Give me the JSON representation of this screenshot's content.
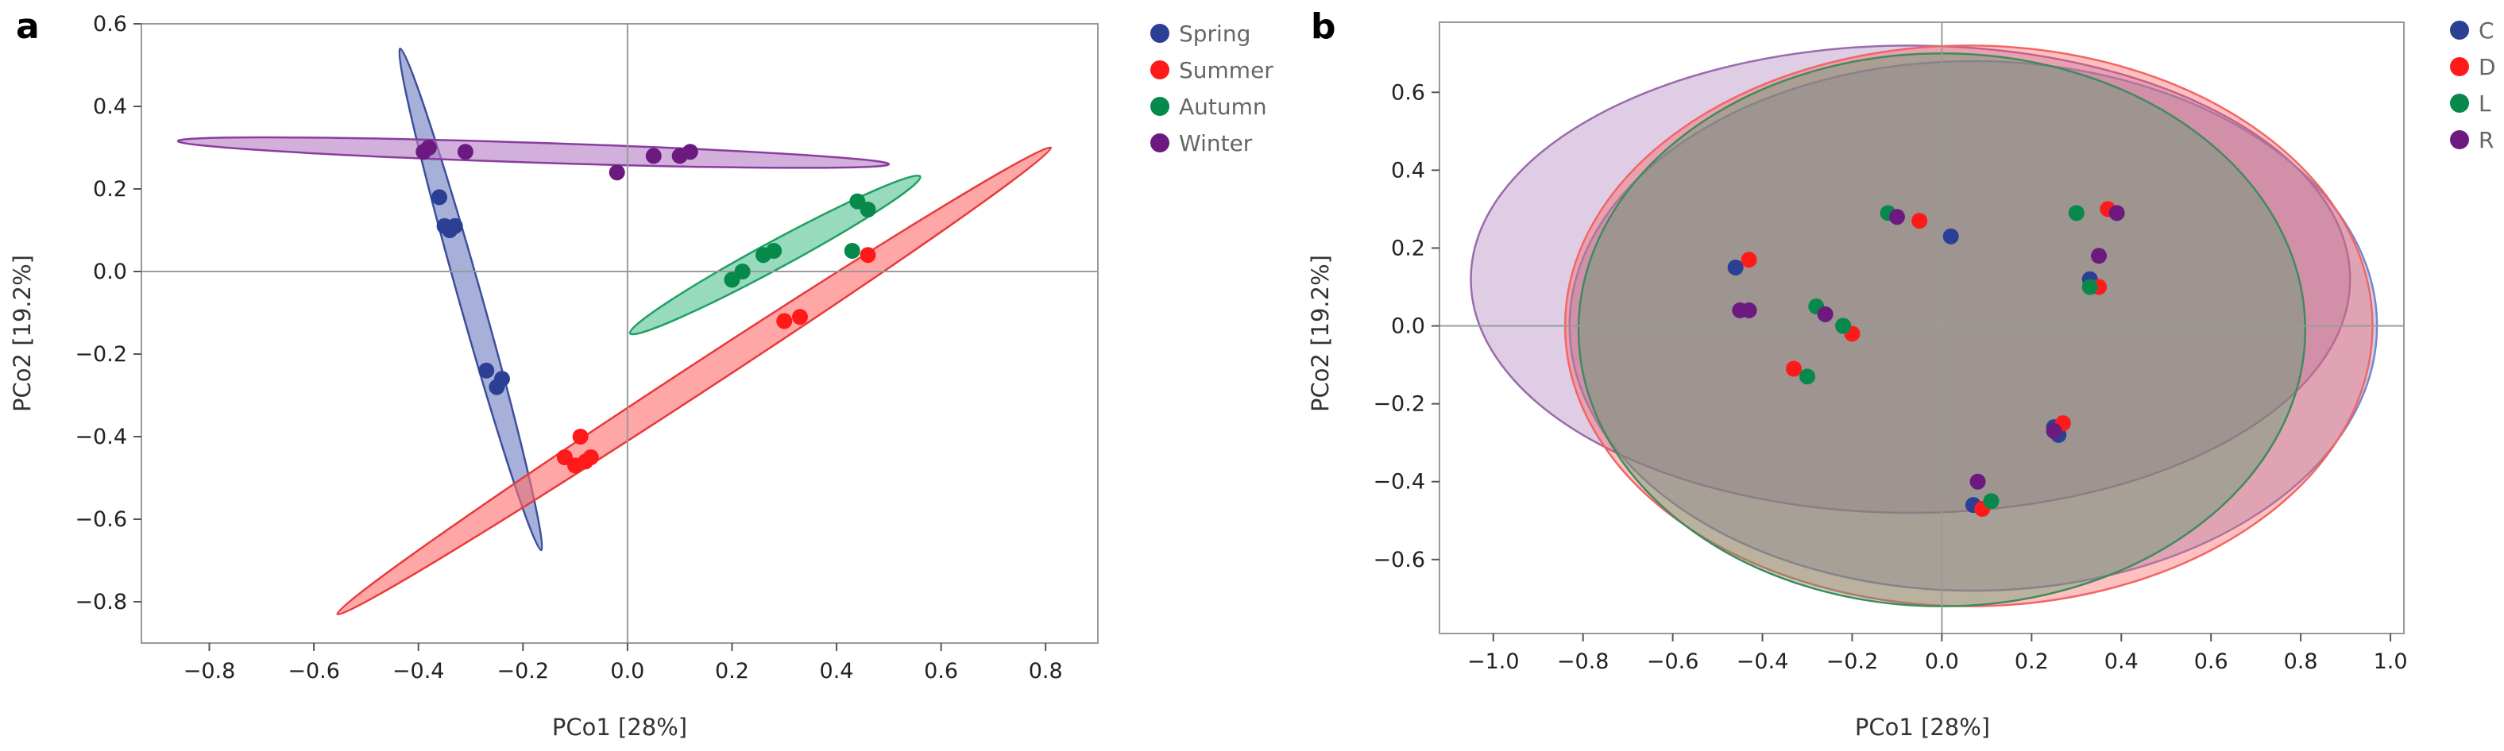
{
  "chart_data": [
    {
      "type": "scatter",
      "panel": "a",
      "xlabel": "PCo1 [28%]",
      "ylabel": "PCo2 [19.2%]",
      "xlim": [
        -0.93,
        0.9
      ],
      "ylim": [
        -0.9,
        0.6
      ],
      "xticks": [
        -0.8,
        -0.6,
        -0.4,
        -0.2,
        0.0,
        0.2,
        0.4,
        0.6,
        0.8
      ],
      "yticks": [
        0.6,
        0.4,
        0.2,
        0.0,
        -0.2,
        -0.4,
        -0.6,
        -0.8
      ],
      "xtick_labels": [
        "−0.8",
        "−0.6",
        "−0.4",
        "−0.2",
        "0.0",
        "0.2",
        "0.4",
        "0.6",
        "0.8"
      ],
      "ytick_labels": [
        "0.6",
        "0.4",
        "0.2",
        "0.0",
        "−0.2",
        "−0.4",
        "−0.6",
        "−0.8"
      ],
      "legend": [
        {
          "label": "Spring",
          "color": "#2b3f95"
        },
        {
          "label": "Summer",
          "color": "#ff1a1a"
        },
        {
          "label": "Autumn",
          "color": "#06894a"
        },
        {
          "label": "Winter",
          "color": "#6c1a80"
        }
      ],
      "series": [
        {
          "name": "Spring",
          "color": "#2b3f95",
          "fill": "#6f7fc0",
          "stroke": "#3d4f9d",
          "points": [
            [
              -0.36,
              0.18
            ],
            [
              -0.35,
              0.11
            ],
            [
              -0.34,
              0.1
            ],
            [
              -0.33,
              0.11
            ],
            [
              -0.27,
              -0.24
            ],
            [
              -0.25,
              -0.28
            ],
            [
              -0.24,
              -0.26
            ]
          ],
          "ellipse_segment": [
            [
              -0.435,
              0.54
            ],
            [
              -0.165,
              -0.675
            ]
          ],
          "ellipse_half_width": 0.022
        },
        {
          "name": "Summer",
          "color": "#ff1a1a",
          "fill": "#ff6f6f",
          "stroke": "#e83a3a",
          "points": [
            [
              -0.12,
              -0.45
            ],
            [
              -0.1,
              -0.47
            ],
            [
              -0.09,
              -0.4
            ],
            [
              -0.08,
              -0.46
            ],
            [
              -0.07,
              -0.45
            ],
            [
              0.3,
              -0.12
            ],
            [
              0.33,
              -0.11
            ],
            [
              0.46,
              0.04
            ]
          ],
          "ellipse_segment": [
            [
              -0.555,
              -0.83
            ],
            [
              0.81,
              0.3
            ]
          ],
          "ellipse_half_width": 0.027
        },
        {
          "name": "Autumn",
          "color": "#06894a",
          "fill": "#58c494",
          "stroke": "#20a063",
          "points": [
            [
              0.2,
              -0.02
            ],
            [
              0.22,
              0.0
            ],
            [
              0.26,
              0.04
            ],
            [
              0.28,
              0.05
            ],
            [
              0.43,
              0.05
            ],
            [
              0.44,
              0.17
            ],
            [
              0.46,
              0.15
            ]
          ],
          "ellipse_segment": [
            [
              0.005,
              -0.15
            ],
            [
              0.56,
              0.23
            ]
          ],
          "ellipse_half_width": 0.026
        },
        {
          "name": "Winter",
          "color": "#6c1a80",
          "fill": "#b87fc7",
          "stroke": "#8a3da0",
          "points": [
            [
              -0.39,
              0.29
            ],
            [
              -0.38,
              0.3
            ],
            [
              -0.31,
              0.29
            ],
            [
              -0.02,
              0.24
            ],
            [
              0.05,
              0.28
            ],
            [
              0.1,
              0.28
            ],
            [
              0.12,
              0.29
            ]
          ],
          "ellipse_segment": [
            [
              -0.86,
              0.316
            ],
            [
              0.5,
              0.26
            ]
          ],
          "ellipse_half_width": 0.019
        }
      ]
    },
    {
      "type": "scatter",
      "panel": "b",
      "xlabel": "PCo1 [28%]",
      "ylabel": "PCo2 [19.2%]",
      "xlim": [
        -1.12,
        1.03
      ],
      "ylim": [
        -0.79,
        0.78
      ],
      "xticks": [
        -1.0,
        -0.8,
        -0.6,
        -0.4,
        -0.2,
        0.0,
        0.2,
        0.4,
        0.6,
        0.8,
        1.0
      ],
      "yticks": [
        0.6,
        0.4,
        0.2,
        0.0,
        -0.2,
        -0.4,
        -0.6
      ],
      "xtick_labels": [
        "−1.0",
        "−0.8",
        "−0.6",
        "−0.4",
        "−0.2",
        "0.0",
        "0.2",
        "0.4",
        "0.6",
        "0.8",
        "1.0"
      ],
      "ytick_labels": [
        "0.6",
        "0.4",
        "0.2",
        "0.0",
        "−0.2",
        "−0.4",
        "−0.6"
      ],
      "legend": [
        {
          "label": "C",
          "color": "#2b3f95"
        },
        {
          "label": "D",
          "color": "#ff1a1a"
        },
        {
          "label": "L",
          "color": "#06894a"
        },
        {
          "label": "R",
          "color": "#6c1a80"
        }
      ],
      "ellipses": [
        {
          "group": "R",
          "cx": -0.07,
          "cy": 0.12,
          "rx": 0.98,
          "ry": 0.6,
          "fill": "#a87bb8",
          "stroke": "#9a6aad"
        },
        {
          "group": "C",
          "cx": 0.07,
          "cy": 0.0,
          "rx": 0.9,
          "ry": 0.68,
          "fill": "#7a86c8",
          "stroke": "#7a86c8"
        },
        {
          "group": "D",
          "cx": 0.06,
          "cy": 0.0,
          "rx": 0.9,
          "ry": 0.72,
          "fill": "#ff5a5a",
          "stroke": "#f26565"
        },
        {
          "group": "L",
          "cx": 0.0,
          "cy": -0.01,
          "rx": 0.81,
          "ry": 0.71,
          "fill": "#4a9a6a",
          "stroke": "#3f8a5f"
        }
      ],
      "series": [
        {
          "name": "C",
          "color": "#2b3f95",
          "points": [
            [
              -0.46,
              0.15
            ],
            [
              0.02,
              0.23
            ],
            [
              0.33,
              0.12
            ],
            [
              -0.22,
              0.0
            ],
            [
              0.25,
              -0.26
            ],
            [
              0.26,
              -0.28
            ],
            [
              0.07,
              -0.46
            ]
          ]
        },
        {
          "name": "D",
          "color": "#ff1a1a",
          "points": [
            [
              -0.43,
              0.17
            ],
            [
              -0.05,
              0.27
            ],
            [
              0.37,
              0.3
            ],
            [
              0.35,
              0.1
            ],
            [
              -0.2,
              -0.02
            ],
            [
              -0.33,
              -0.11
            ],
            [
              0.27,
              -0.25
            ],
            [
              0.09,
              -0.47
            ]
          ]
        },
        {
          "name": "L",
          "color": "#06894a",
          "points": [
            [
              -0.12,
              0.29
            ],
            [
              0.3,
              0.29
            ],
            [
              0.33,
              0.1
            ],
            [
              -0.28,
              0.05
            ],
            [
              -0.22,
              0.0
            ],
            [
              -0.3,
              -0.13
            ],
            [
              0.11,
              -0.45
            ]
          ]
        },
        {
          "name": "R",
          "color": "#6c1a80",
          "points": [
            [
              -0.1,
              0.28
            ],
            [
              0.39,
              0.29
            ],
            [
              0.35,
              0.18
            ],
            [
              -0.45,
              0.04
            ],
            [
              -0.43,
              0.04
            ],
            [
              -0.26,
              0.03
            ],
            [
              0.25,
              -0.27
            ],
            [
              0.08,
              -0.4
            ]
          ]
        }
      ]
    }
  ]
}
